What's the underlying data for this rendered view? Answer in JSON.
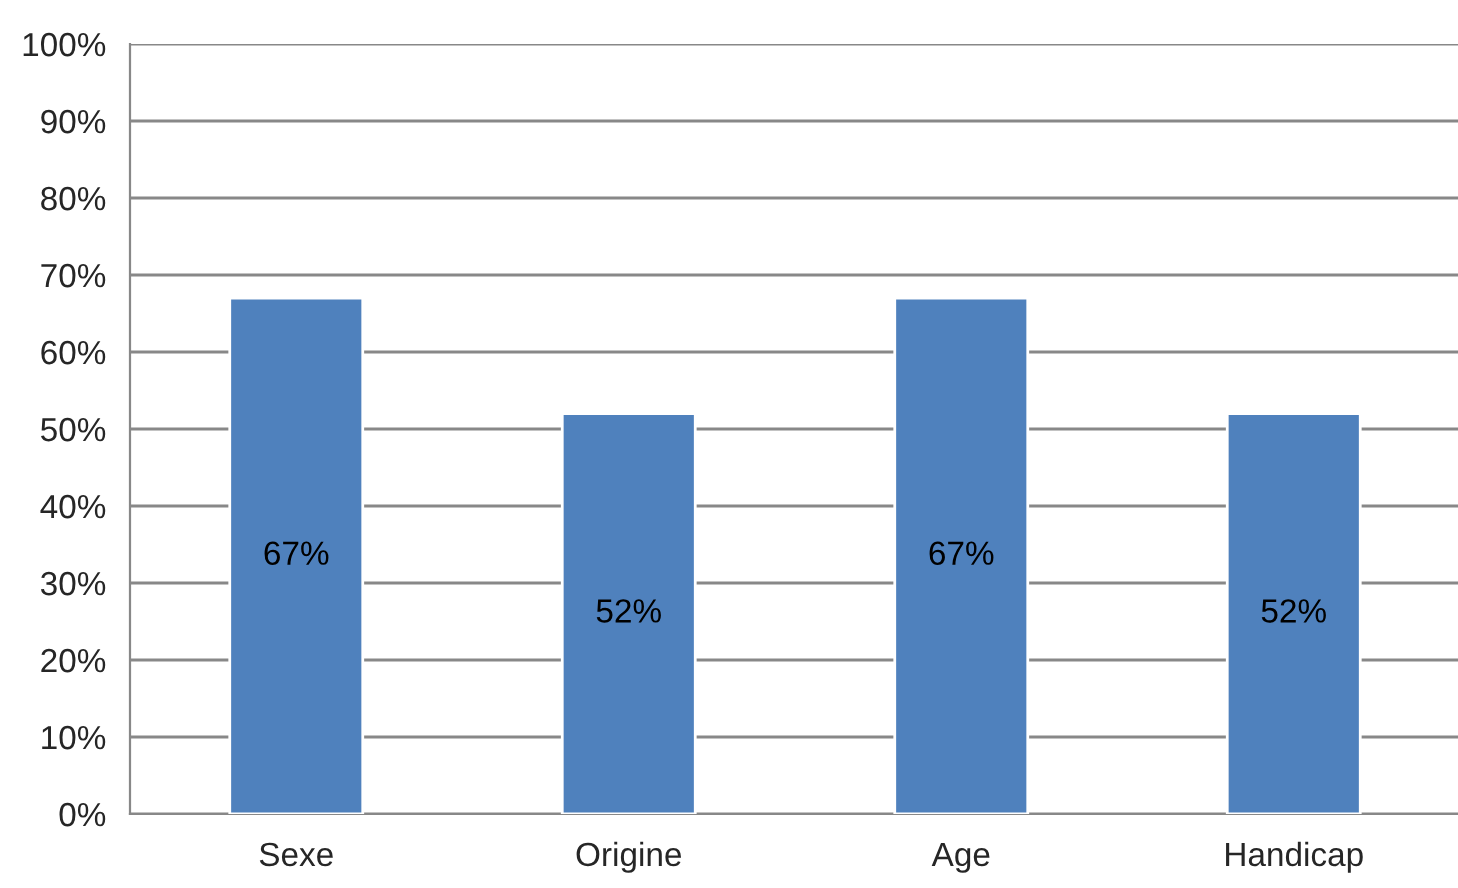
{
  "chart_data": {
    "type": "bar",
    "categories": [
      "Sexe",
      "Origine",
      "Age",
      "Handicap"
    ],
    "values": [
      67,
      52,
      67,
      52
    ],
    "value_labels": [
      "67%",
      "52%",
      "67%",
      "52%"
    ],
    "color": "#4f81bd",
    "ylim": [
      0,
      100
    ],
    "yticks": [
      {
        "value": 0,
        "label": "0%"
      },
      {
        "value": 10,
        "label": "10%"
      },
      {
        "value": 20,
        "label": "20%"
      },
      {
        "value": 30,
        "label": "30%"
      },
      {
        "value": 40,
        "label": "40%"
      },
      {
        "value": 50,
        "label": "50%"
      },
      {
        "value": 60,
        "label": "60%"
      },
      {
        "value": 70,
        "label": "70%"
      },
      {
        "value": 80,
        "label": "80%"
      },
      {
        "value": 90,
        "label": "90%"
      },
      {
        "value": 100,
        "label": "100%"
      }
    ],
    "grid": "y"
  }
}
